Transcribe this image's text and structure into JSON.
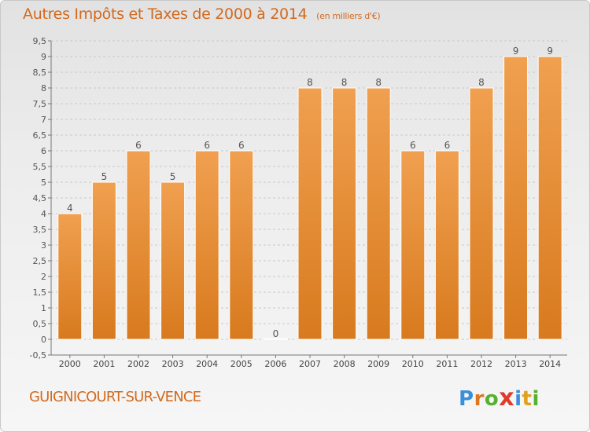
{
  "title": {
    "main": "Autres Impôts et Taxes de 2000 à 2014",
    "unit": "(en milliers d'€)"
  },
  "commune": "GUIGNICOURT-SUR-VENCE",
  "logo": {
    "text": "Proxiti",
    "letters": [
      {
        "char": "P",
        "color": "#3a8fd8"
      },
      {
        "char": "r",
        "color": "#e0751e"
      },
      {
        "char": "o",
        "color": "#58b030"
      },
      {
        "char": "x",
        "color": "#e03a2a"
      },
      {
        "char": "i",
        "color": "#3a8fd8"
      },
      {
        "char": "t",
        "color": "#e0a21e"
      },
      {
        "char": "i",
        "color": "#58b030"
      }
    ]
  },
  "chart_data": {
    "type": "bar",
    "title": "Autres Impôts et Taxes de 2000 à 2014",
    "subtitle": "(en milliers d'€)",
    "xlabel": "",
    "ylabel": "",
    "categories": [
      "2000",
      "2001",
      "2002",
      "2003",
      "2004",
      "2005",
      "2006",
      "2007",
      "2008",
      "2009",
      "2010",
      "2011",
      "2012",
      "2013",
      "2014"
    ],
    "values": [
      4,
      5,
      6,
      5,
      6,
      6,
      0,
      8,
      8,
      8,
      6,
      6,
      8,
      9,
      9
    ],
    "data_labels": [
      "4",
      "5",
      "6",
      "5",
      "6",
      "6",
      "0",
      "8",
      "8",
      "8",
      "6",
      "6",
      "8",
      "9",
      "9"
    ],
    "ylim": [
      -0.5,
      9.5
    ],
    "yticks": [
      "-0,5",
      "0",
      "0,5",
      "1",
      "1,5",
      "2",
      "2,5",
      "3",
      "3,5",
      "4",
      "4,5",
      "5",
      "5,5",
      "6",
      "6,5",
      "7",
      "7,5",
      "8",
      "8,5",
      "9",
      "9,5"
    ],
    "ytick_values": [
      -0.5,
      0,
      0.5,
      1,
      1.5,
      2,
      2.5,
      3,
      3.5,
      4,
      4.5,
      5,
      5.5,
      6,
      6.5,
      7,
      7.5,
      8,
      8.5,
      9,
      9.5
    ],
    "grid": true,
    "bar_color": "#f0a050",
    "bar_color_dark": "#d87a1e"
  }
}
